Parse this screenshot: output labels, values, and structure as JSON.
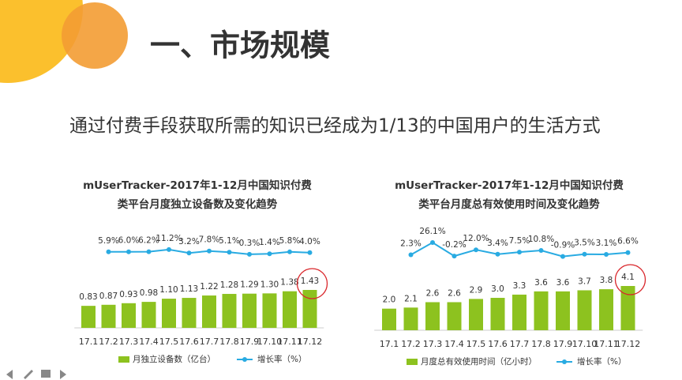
{
  "slide": {
    "title": "一、市场规模",
    "subtitle": "通过付费手段获取所需的知识已经成为1/13的中国用户的生活方式"
  },
  "chart_data": [
    {
      "type": "bar-line",
      "title": [
        "mUserTracker-2017年1-12月中国知识付费",
        "类平台月度独立设备数及变化趋势"
      ],
      "categories": [
        "17.1",
        "17.2",
        "17.3",
        "17.4",
        "17.5",
        "17.6",
        "17.7",
        "17.8",
        "17.9",
        "17.10",
        "17.11",
        "17.12"
      ],
      "series": [
        {
          "name": "月独立设备数（亿台）",
          "color": "#8dc21f",
          "values": [
            0.83,
            0.87,
            0.93,
            0.98,
            1.1,
            1.13,
            1.22,
            1.28,
            1.29,
            1.3,
            1.38,
            1.43
          ],
          "value_labels": [
            "0.83",
            "0.87",
            "0.93",
            "0.98",
            "1.10",
            "1.13",
            "1.22",
            "1.28",
            "1.29",
            "1.30",
            "1.38",
            "1.43"
          ]
        },
        {
          "name": "增长率（%）",
          "color": "#29abe2",
          "values": [
            null,
            5.9,
            6.0,
            6.2,
            11.2,
            3.2,
            7.8,
            5.1,
            0.3,
            1.4,
            5.8,
            4.0
          ],
          "value_labels": [
            null,
            "5.9%",
            "6.0%",
            "6.2%",
            "11.2%",
            "3.2%",
            "7.8%",
            "5.1%",
            "0.3%",
            "1.4%",
            "5.8%",
            "4.0%"
          ]
        }
      ]
    },
    {
      "type": "bar-line",
      "title": [
        "mUserTracker-2017年1-12月中国知识付费",
        "类平台月度总有效使用时间及变化趋势"
      ],
      "categories": [
        "17.1",
        "17.2",
        "17.3",
        "17.4",
        "17.5",
        "17.6",
        "17.7",
        "17.8",
        "17.9",
        "17.10",
        "17.11",
        "17.12"
      ],
      "series": [
        {
          "name": "月度总有效使用时间（亿小时）",
          "color": "#8dc21f",
          "values": [
            2.0,
            2.1,
            2.6,
            2.6,
            2.9,
            3.0,
            3.3,
            3.6,
            3.6,
            3.7,
            3.8,
            4.1
          ],
          "value_labels": [
            "2.0",
            "2.1",
            "2.6",
            "2.6",
            "2.9",
            "3.0",
            "3.3",
            "3.6",
            "3.6",
            "3.7",
            "3.8",
            "4.1"
          ]
        },
        {
          "name": "增长率（%）",
          "color": "#29abe2",
          "values": [
            null,
            2.3,
            26.1,
            -0.2,
            12.0,
            3.4,
            7.5,
            10.8,
            -0.9,
            3.5,
            3.1,
            6.6
          ],
          "value_labels": [
            null,
            "2.3%",
            "26.1%",
            "-0.2%",
            "12.0%",
            "3.4%",
            "7.5%",
            "10.8%",
            "-0.9%",
            "3.5%",
            "3.1%",
            "6.6%"
          ]
        }
      ]
    }
  ]
}
